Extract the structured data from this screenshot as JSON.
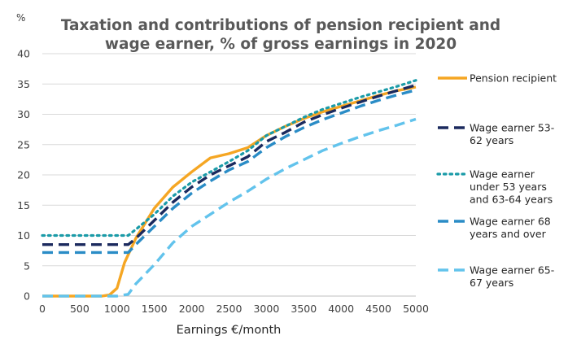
{
  "chart_data": {
    "type": "line",
    "title": [
      "Taxation and contributions of pension recipient and",
      "wage earner, % of gross earnings in 2020"
    ],
    "y_unit": "%",
    "xlabel": "Earnings €/month",
    "ylabel": "",
    "xlim": [
      0,
      5000
    ],
    "ylim": [
      0,
      40
    ],
    "x_ticks": [
      0,
      500,
      1000,
      1500,
      2000,
      2500,
      3000,
      3500,
      4000,
      4500,
      5000
    ],
    "y_ticks": [
      0,
      5,
      10,
      15,
      20,
      25,
      30,
      35,
      40
    ],
    "grid": true,
    "legend_position": "right",
    "series": [
      {
        "name": "Pension recipient",
        "legend_lines": [
          "Pension recipient"
        ],
        "color": "#F5A623",
        "dash": "solid",
        "x": [
          0,
          250,
          500,
          750,
          800,
          900,
          1000,
          1100,
          1250,
          1500,
          1750,
          2000,
          2250,
          2500,
          2750,
          3000,
          3250,
          3500,
          3750,
          4000,
          4250,
          4500,
          4750,
          5000
        ],
        "y": [
          0,
          0,
          0,
          0,
          0,
          0.2,
          1.3,
          5.5,
          9.5,
          14.5,
          18,
          20.5,
          22.8,
          23.5,
          24.5,
          26.5,
          28,
          29.3,
          30.4,
          31.3,
          32.2,
          33.1,
          33.9,
          34.5
        ]
      },
      {
        "name": "Wage earner 53-62 years",
        "legend_lines": [
          "Wage earner 53-",
          "62 years"
        ],
        "color": "#1B2A5E",
        "dash": "long",
        "x": [
          0,
          500,
          1000,
          1150,
          1250,
          1500,
          1750,
          2000,
          2250,
          2500,
          2750,
          3000,
          3250,
          3500,
          3750,
          4000,
          4250,
          4500,
          4750,
          5000
        ],
        "y": [
          8.5,
          8.5,
          8.5,
          8.5,
          9.5,
          12.5,
          15.5,
          18,
          20,
          21.5,
          23,
          25.5,
          27,
          28.7,
          29.9,
          31,
          32,
          33,
          33.9,
          34.8
        ]
      },
      {
        "name": "Wage earner under 53 years and 63-64 years",
        "legend_lines": [
          "Wage earner",
          "under 53 years",
          "and 63-64 years"
        ],
        "color": "#1A9BA8",
        "dash": "dot",
        "x": [
          0,
          500,
          1000,
          1150,
          1250,
          1500,
          1750,
          2000,
          2250,
          2500,
          2750,
          3000,
          3250,
          3500,
          3750,
          4000,
          4250,
          4500,
          4750,
          5000
        ],
        "y": [
          10,
          10,
          10,
          10,
          11,
          13.5,
          16.5,
          18.8,
          20.5,
          22.2,
          24,
          26.5,
          28,
          29.5,
          30.8,
          31.8,
          32.8,
          33.7,
          34.6,
          35.6
        ]
      },
      {
        "name": "Wage earner 68 years and over",
        "legend_lines": [
          "Wage earner 68",
          "years and over"
        ],
        "color": "#2A8CC6",
        "dash": "long",
        "x": [
          0,
          500,
          1000,
          1150,
          1250,
          1500,
          1750,
          2000,
          2250,
          2500,
          2750,
          3000,
          3250,
          3500,
          3750,
          4000,
          4250,
          4500,
          4750,
          5000
        ],
        "y": [
          7.2,
          7.2,
          7.2,
          7.2,
          8.5,
          11.5,
          14.5,
          17,
          19,
          20.8,
          22.2,
          24.5,
          26.3,
          27.8,
          29.1,
          30.2,
          31.3,
          32.3,
          33.2,
          34
        ]
      },
      {
        "name": "Wage earner 65-67 years",
        "legend_lines": [
          "Wage earner 65-",
          "67 years"
        ],
        "color": "#62C3EC",
        "dash": "long",
        "x": [
          0,
          500,
          1000,
          1150,
          1250,
          1500,
          1750,
          2000,
          2250,
          2500,
          2750,
          3000,
          3250,
          3500,
          3750,
          4000,
          4250,
          4500,
          4750,
          5000
        ],
        "y": [
          0,
          0,
          0,
          0.3,
          2,
          5.2,
          8.8,
          11.5,
          13.5,
          15.5,
          17.3,
          19.3,
          21,
          22.5,
          24,
          25.2,
          26.3,
          27.3,
          28.2,
          29.2
        ]
      }
    ]
  }
}
